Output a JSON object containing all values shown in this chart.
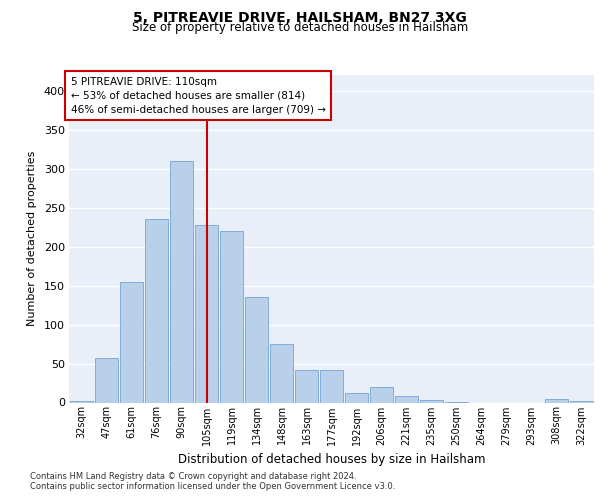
{
  "title1": "5, PITREAVIE DRIVE, HAILSHAM, BN27 3XG",
  "title2": "Size of property relative to detached houses in Hailsham",
  "xlabel": "Distribution of detached houses by size in Hailsham",
  "ylabel": "Number of detached properties",
  "categories": [
    "32sqm",
    "47sqm",
    "61sqm",
    "76sqm",
    "90sqm",
    "105sqm",
    "119sqm",
    "134sqm",
    "148sqm",
    "163sqm",
    "177sqm",
    "192sqm",
    "206sqm",
    "221sqm",
    "235sqm",
    "250sqm",
    "264sqm",
    "279sqm",
    "293sqm",
    "308sqm",
    "322sqm"
  ],
  "values": [
    2,
    57,
    155,
    235,
    310,
    228,
    220,
    135,
    75,
    42,
    42,
    12,
    20,
    8,
    3,
    1,
    0,
    0,
    0,
    4,
    2
  ],
  "bar_color": "#b8d0ea",
  "bar_edge_color": "#6699cc",
  "bg_color": "#e8eff8",
  "annotation_line1": "5 PITREAVIE DRIVE: 110sqm",
  "annotation_line2": "← 53% of detached houses are smaller (814)",
  "annotation_line3": "46% of semi-detached houses are larger (709) →",
  "vline_x": 5.0,
  "vline_color": "#cc0000",
  "box_edge_color": "#cc0000",
  "footnote1": "Contains HM Land Registry data © Crown copyright and database right 2024.",
  "footnote2": "Contains public sector information licensed under the Open Government Licence v3.0.",
  "ylim": [
    0,
    420
  ],
  "yticks": [
    0,
    50,
    100,
    150,
    200,
    250,
    300,
    350,
    400
  ]
}
